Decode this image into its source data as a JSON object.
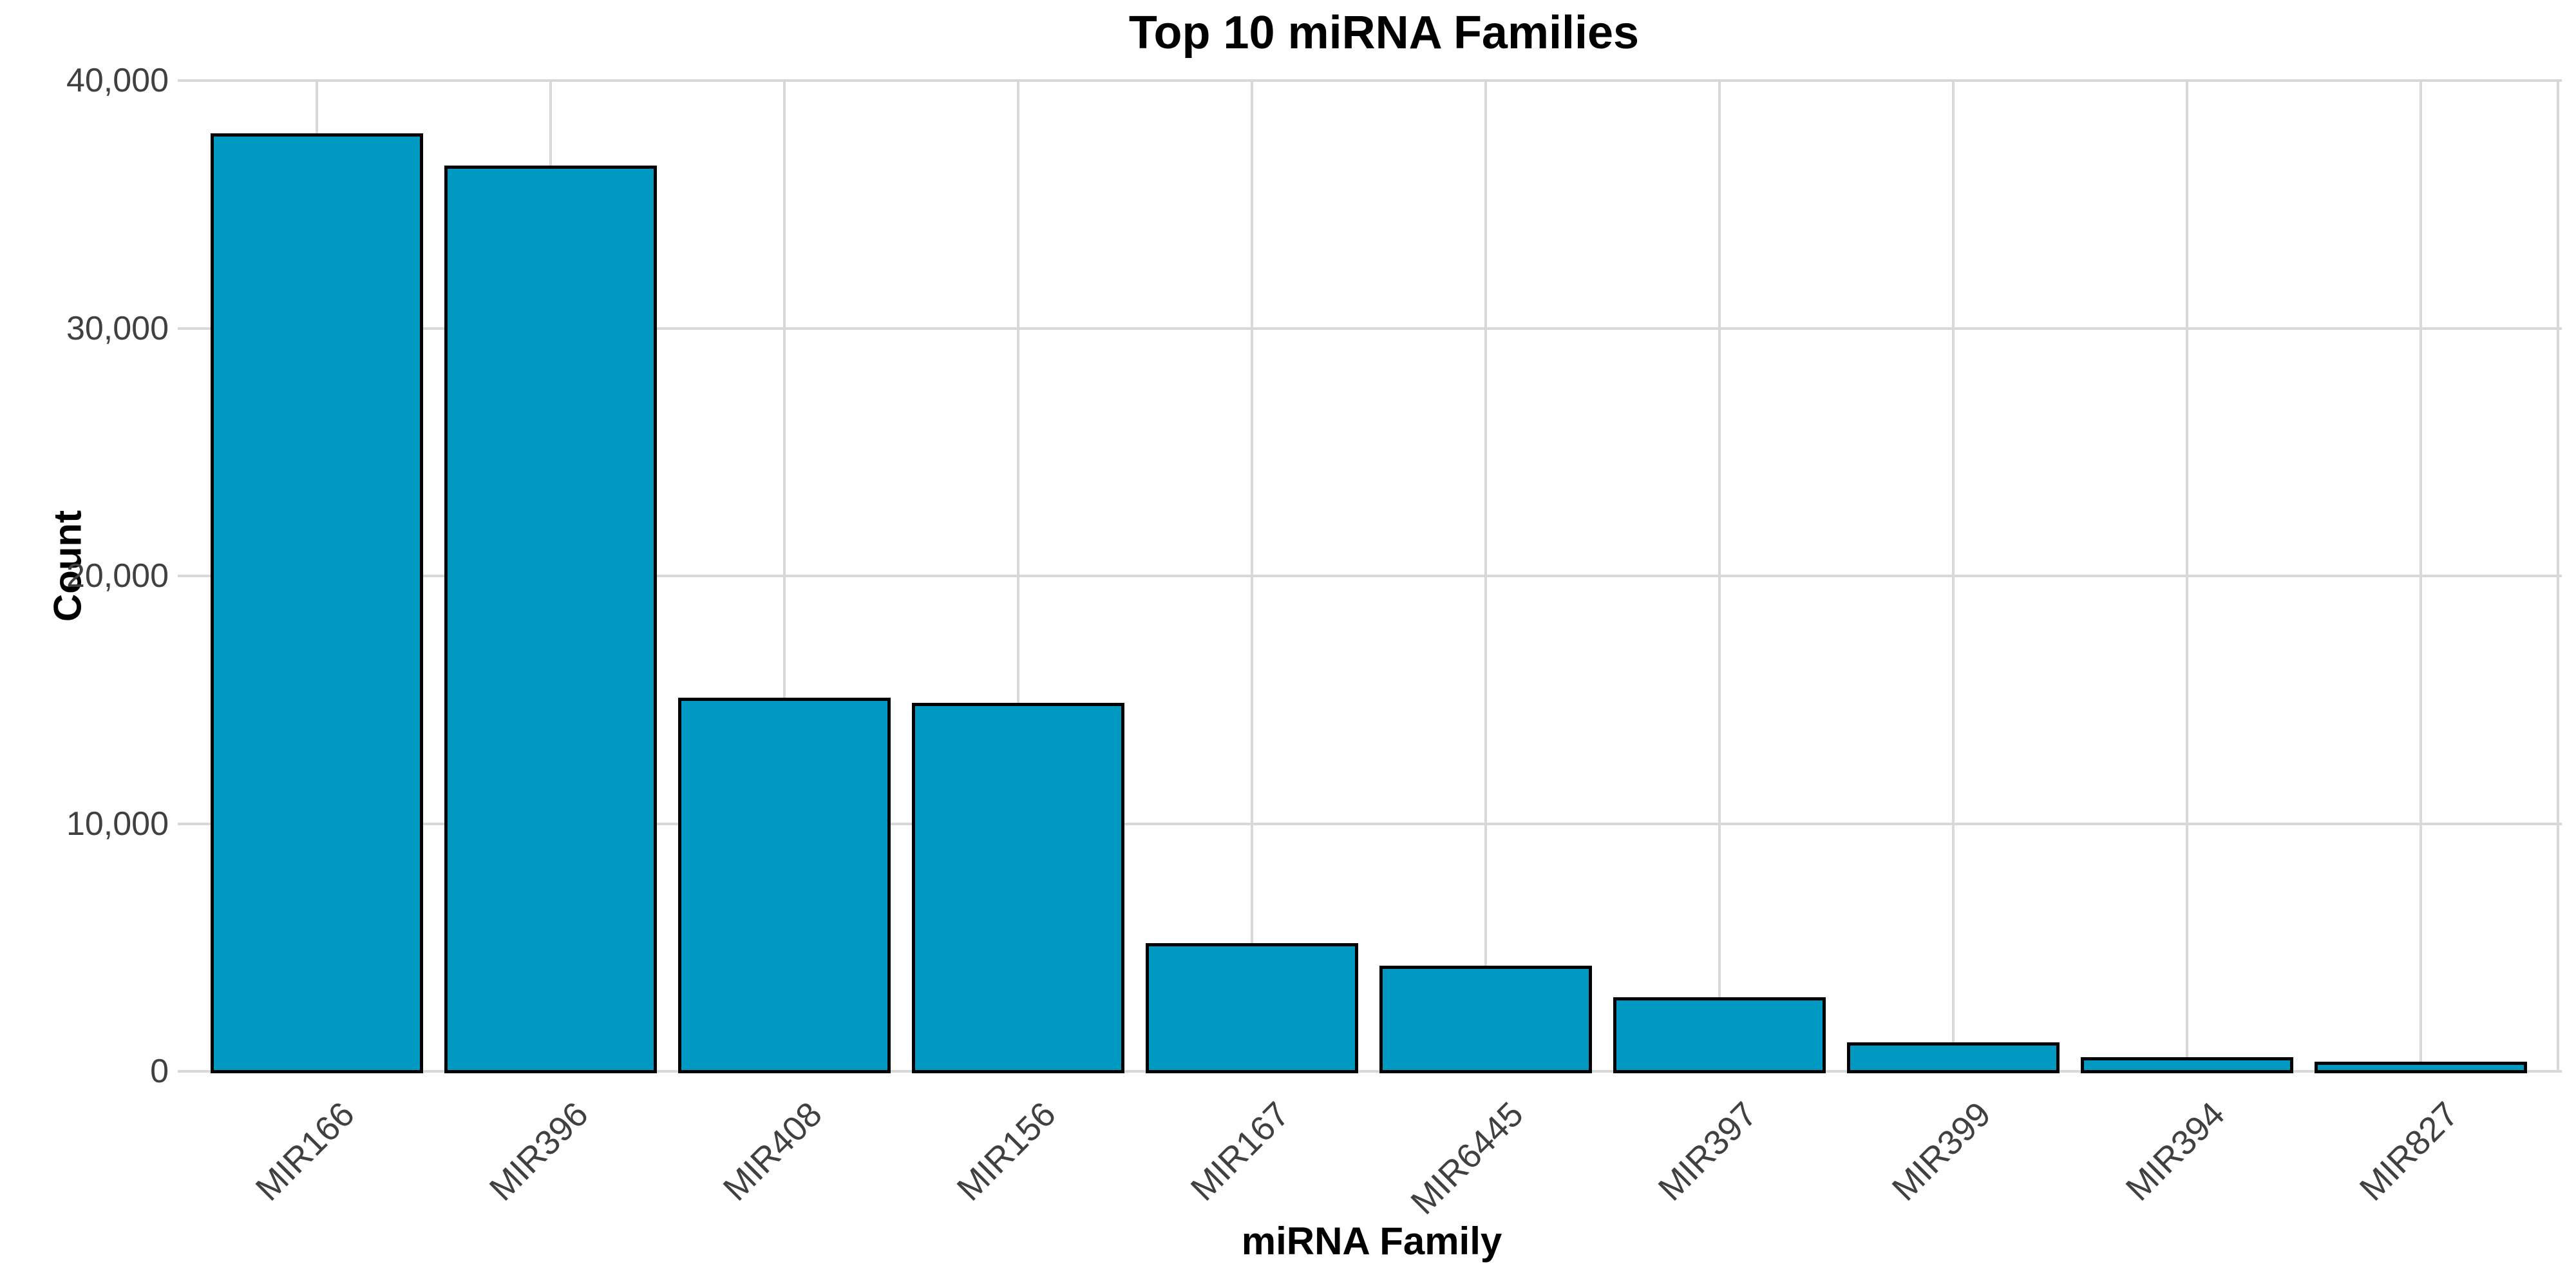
{
  "chart_data": {
    "type": "bar",
    "title": "Top 10 miRNA Families",
    "xlabel": "miRNA Family",
    "ylabel": "Count",
    "categories": [
      "MIR166",
      "MIR396",
      "MIR408",
      "MIR156",
      "MIR167",
      "MIR6445",
      "MIR397",
      "MIR399",
      "MIR394",
      "MIR827"
    ],
    "values": [
      37800,
      36500,
      15000,
      14800,
      5100,
      4200,
      2900,
      1100,
      500,
      300
    ],
    "ylim": [
      0,
      40000
    ],
    "y_ticks": [
      {
        "value": 0,
        "label": "0"
      },
      {
        "value": 10000,
        "label": "10,000"
      },
      {
        "value": 20000,
        "label": "20,000"
      },
      {
        "value": 30000,
        "label": "30,000"
      },
      {
        "value": 40000,
        "label": "40,000"
      }
    ],
    "grid": true,
    "legend": "none",
    "colors": {
      "bar_fill": "#0099c2",
      "bar_stroke": "#000000",
      "grid": "#d8d8d8",
      "tick_label": "#404040",
      "title": "#000000"
    }
  }
}
